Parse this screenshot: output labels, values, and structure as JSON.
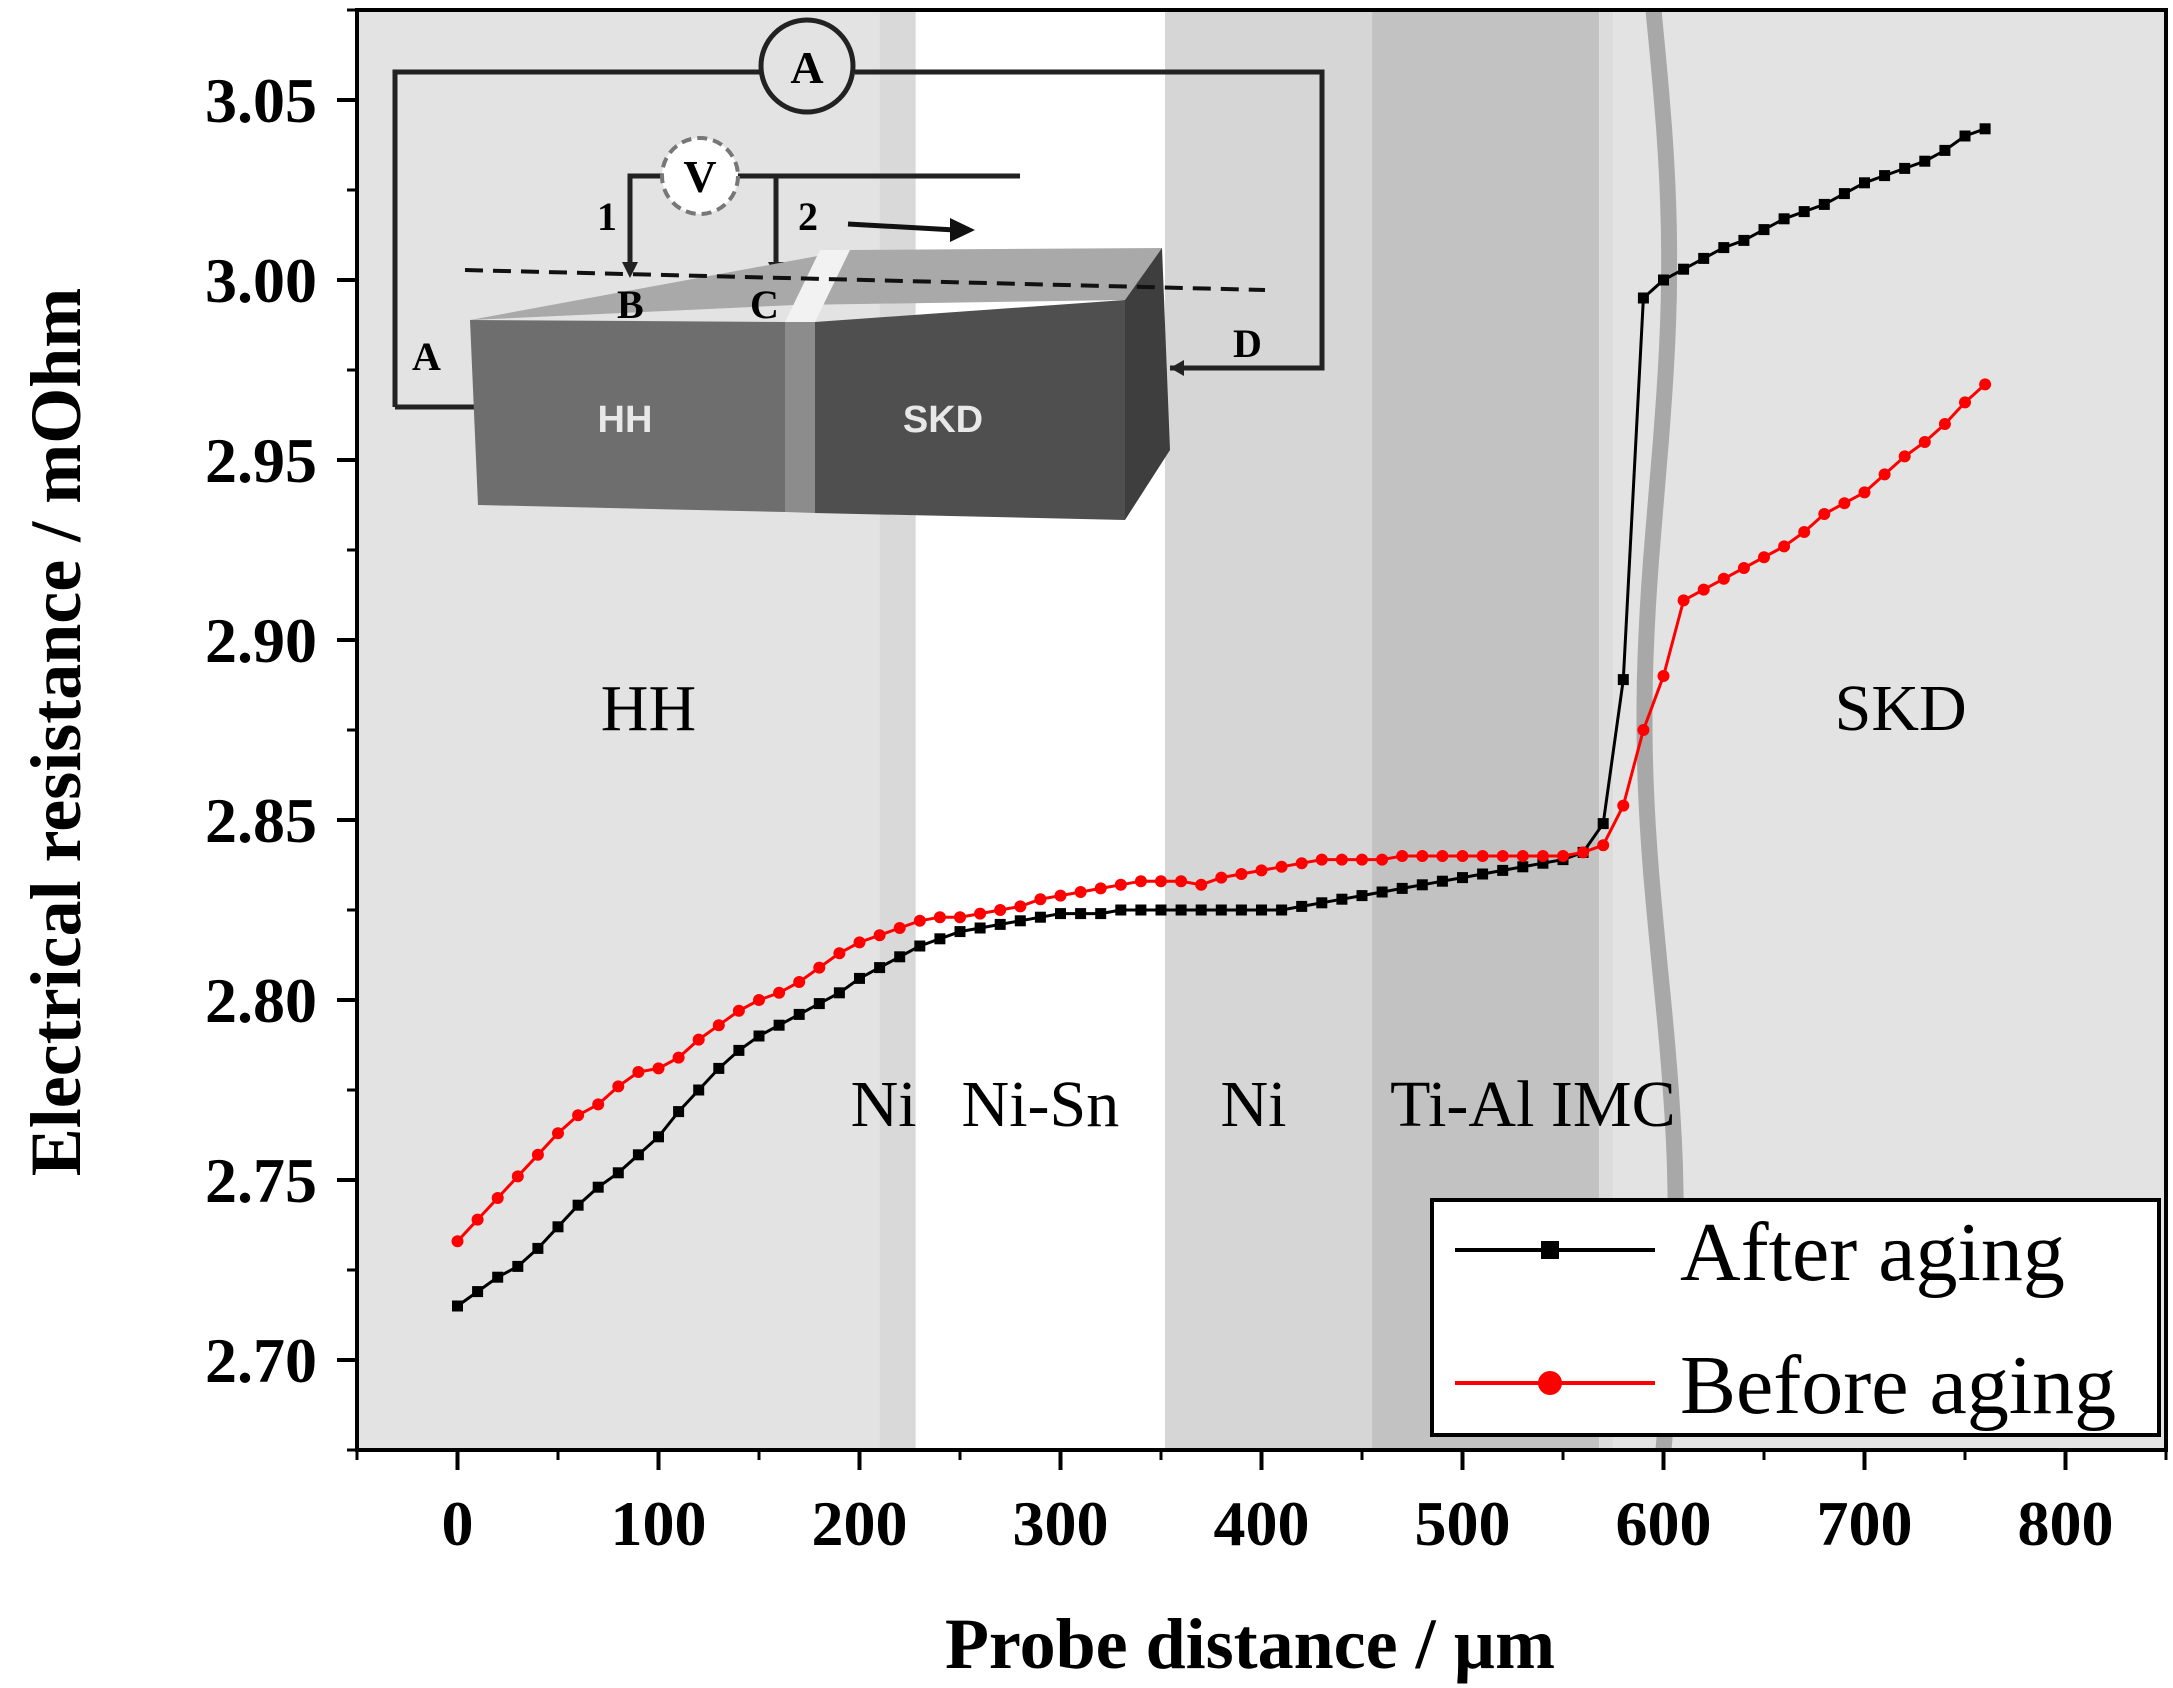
{
  "chart_data": {
    "type": "line",
    "xlabel": "Probe distance / µm",
    "ylabel": "Electrical resistance / mOhm",
    "xlim": [
      -50,
      850
    ],
    "ylim": [
      2.675,
      3.075
    ],
    "xticks": [
      0,
      100,
      200,
      300,
      400,
      500,
      600,
      700,
      800
    ],
    "yticks": [
      2.7,
      2.75,
      2.8,
      2.85,
      2.9,
      2.95,
      3.0,
      3.05
    ],
    "xtick_labels": [
      "0",
      "100",
      "200",
      "300",
      "400",
      "500",
      "600",
      "700",
      "800"
    ],
    "ytick_labels": [
      "2.70",
      "2.75",
      "2.80",
      "2.85",
      "2.90",
      "2.95",
      "3.00",
      "3.05"
    ],
    "regions": [
      {
        "name": "HH",
        "x0": -50,
        "x1": 210,
        "color": "#e3e3e3"
      },
      {
        "name": "Ni",
        "x0": 210,
        "x1": 228,
        "color": "#d9d9d9"
      },
      {
        "name": "Ni-Sn",
        "x0": 228,
        "x1": 352,
        "color": "#ffffff"
      },
      {
        "name": "Ni",
        "x0": 352,
        "x1": 455,
        "color": "#d6d6d6"
      },
      {
        "name": "Ti-Al IMC",
        "x0": 455,
        "x1": 568,
        "color": "#c2c2c2"
      },
      {
        "name": "",
        "x0": 568,
        "x1": 575,
        "color": "#dcdcdc"
      },
      {
        "name": "SKD",
        "x0": 575,
        "x1": 850,
        "color": "#e3e3e3"
      }
    ],
    "region_labels": [
      {
        "text": "HH",
        "x": 95,
        "y": 2.875
      },
      {
        "text": "Ni",
        "x": 212,
        "y": 2.765
      },
      {
        "text": "Ni-Sn",
        "x": 290,
        "y": 2.765
      },
      {
        "text": "Ni",
        "x": 396,
        "y": 2.765
      },
      {
        "text": "Ti-Al IMC",
        "x": 535,
        "y": 2.765
      },
      {
        "text": "SKD",
        "x": 718,
        "y": 2.875
      }
    ],
    "series": [
      {
        "name": "After aging",
        "color": "#000000",
        "marker": "square",
        "x": [
          0,
          10,
          20,
          30,
          40,
          50,
          60,
          70,
          80,
          90,
          100,
          110,
          120,
          130,
          140,
          150,
          160,
          170,
          180,
          190,
          200,
          210,
          220,
          230,
          240,
          250,
          260,
          270,
          280,
          290,
          300,
          310,
          320,
          330,
          340,
          350,
          360,
          370,
          380,
          390,
          400,
          410,
          420,
          430,
          440,
          450,
          460,
          470,
          480,
          490,
          500,
          510,
          520,
          530,
          540,
          550,
          560,
          570,
          580,
          590,
          600,
          610,
          620,
          630,
          640,
          650,
          660,
          670,
          680,
          690,
          700,
          710,
          720,
          730,
          740,
          750,
          760
        ],
        "y": [
          2.715,
          2.719,
          2.723,
          2.726,
          2.731,
          2.737,
          2.743,
          2.748,
          2.752,
          2.757,
          2.762,
          2.769,
          2.775,
          2.781,
          2.786,
          2.79,
          2.793,
          2.796,
          2.799,
          2.802,
          2.806,
          2.809,
          2.812,
          2.815,
          2.817,
          2.819,
          2.82,
          2.821,
          2.822,
          2.823,
          2.824,
          2.824,
          2.824,
          2.825,
          2.825,
          2.825,
          2.825,
          2.825,
          2.825,
          2.825,
          2.825,
          2.825,
          2.826,
          2.827,
          2.828,
          2.829,
          2.83,
          2.831,
          2.832,
          2.833,
          2.834,
          2.835,
          2.836,
          2.837,
          2.838,
          2.839,
          2.841,
          2.849,
          2.889,
          2.995,
          3.0,
          3.003,
          3.006,
          3.009,
          3.011,
          3.014,
          3.017,
          3.019,
          3.021,
          3.024,
          3.027,
          3.029,
          3.031,
          3.033,
          3.036,
          3.04,
          3.042
        ]
      },
      {
        "name": "Before aging",
        "color": "#ff0000",
        "marker": "circle",
        "x": [
          0,
          10,
          20,
          30,
          40,
          50,
          60,
          70,
          80,
          90,
          100,
          110,
          120,
          130,
          140,
          150,
          160,
          170,
          180,
          190,
          200,
          210,
          220,
          230,
          240,
          250,
          260,
          270,
          280,
          290,
          300,
          310,
          320,
          330,
          340,
          350,
          360,
          370,
          380,
          390,
          400,
          410,
          420,
          430,
          440,
          450,
          460,
          470,
          480,
          490,
          500,
          510,
          520,
          530,
          540,
          550,
          560,
          570,
          580,
          590,
          600,
          610,
          620,
          630,
          640,
          650,
          660,
          670,
          680,
          690,
          700,
          710,
          720,
          730,
          740,
          750,
          760
        ],
        "y": [
          2.733,
          2.739,
          2.745,
          2.751,
          2.757,
          2.763,
          2.768,
          2.771,
          2.776,
          2.78,
          2.781,
          2.784,
          2.789,
          2.793,
          2.797,
          2.8,
          2.802,
          2.805,
          2.809,
          2.813,
          2.816,
          2.818,
          2.82,
          2.822,
          2.823,
          2.823,
          2.824,
          2.825,
          2.826,
          2.828,
          2.829,
          2.83,
          2.831,
          2.832,
          2.833,
          2.833,
          2.833,
          2.832,
          2.834,
          2.835,
          2.836,
          2.837,
          2.838,
          2.839,
          2.839,
          2.839,
          2.839,
          2.84,
          2.84,
          2.84,
          2.84,
          2.84,
          2.84,
          2.84,
          2.84,
          2.84,
          2.841,
          2.843,
          2.854,
          2.875,
          2.89,
          2.911,
          2.914,
          2.917,
          2.92,
          2.923,
          2.926,
          2.93,
          2.935,
          2.938,
          2.941,
          2.946,
          2.951,
          2.955,
          2.96,
          2.966,
          2.971
        ]
      }
    ],
    "legend": {
      "position": "bottom-right",
      "items": [
        "After aging",
        "Before aging"
      ]
    }
  },
  "inset": {
    "ammeter_label": "A",
    "voltmeter_label": "V",
    "probe_1_label": "1",
    "probe_2_label": "2",
    "point_labels": {
      "A": "A",
      "B": "B",
      "C": "C",
      "D": "D"
    },
    "block_left_label": "HH",
    "block_right_label": "SKD"
  },
  "colors": {
    "after_aging": "#000000",
    "before_aging": "#ff0000",
    "interface_line": "#a8a8a8"
  }
}
